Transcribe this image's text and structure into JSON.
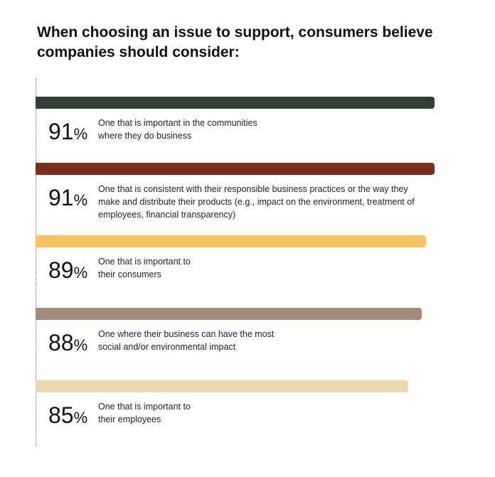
{
  "chart_data": {
    "type": "bar",
    "orientation": "horizontal",
    "title": "When choosing an issue to support, consumers believe companies should consider:",
    "xlim": [
      0,
      100
    ],
    "grid": false,
    "categories": [
      "One that is important in the communities where they do business",
      "One that is consistent with their responsible business practices or the way they make and distribute their products (e.g., impact on the environment, treatment of employees, financial transparency)",
      "One that is important to their consumers",
      "One where their business can have the most social and/or environmental impact",
      "One that is important to their employees"
    ],
    "values": [
      91,
      91,
      89,
      88,
      85
    ],
    "value_labels": [
      "91",
      "91",
      "89",
      "88",
      "85"
    ],
    "unit": "%",
    "colors": [
      "#313f37",
      "#7b2e20",
      "#f9c262",
      "#a2897a",
      "#ecd8ae"
    ]
  }
}
